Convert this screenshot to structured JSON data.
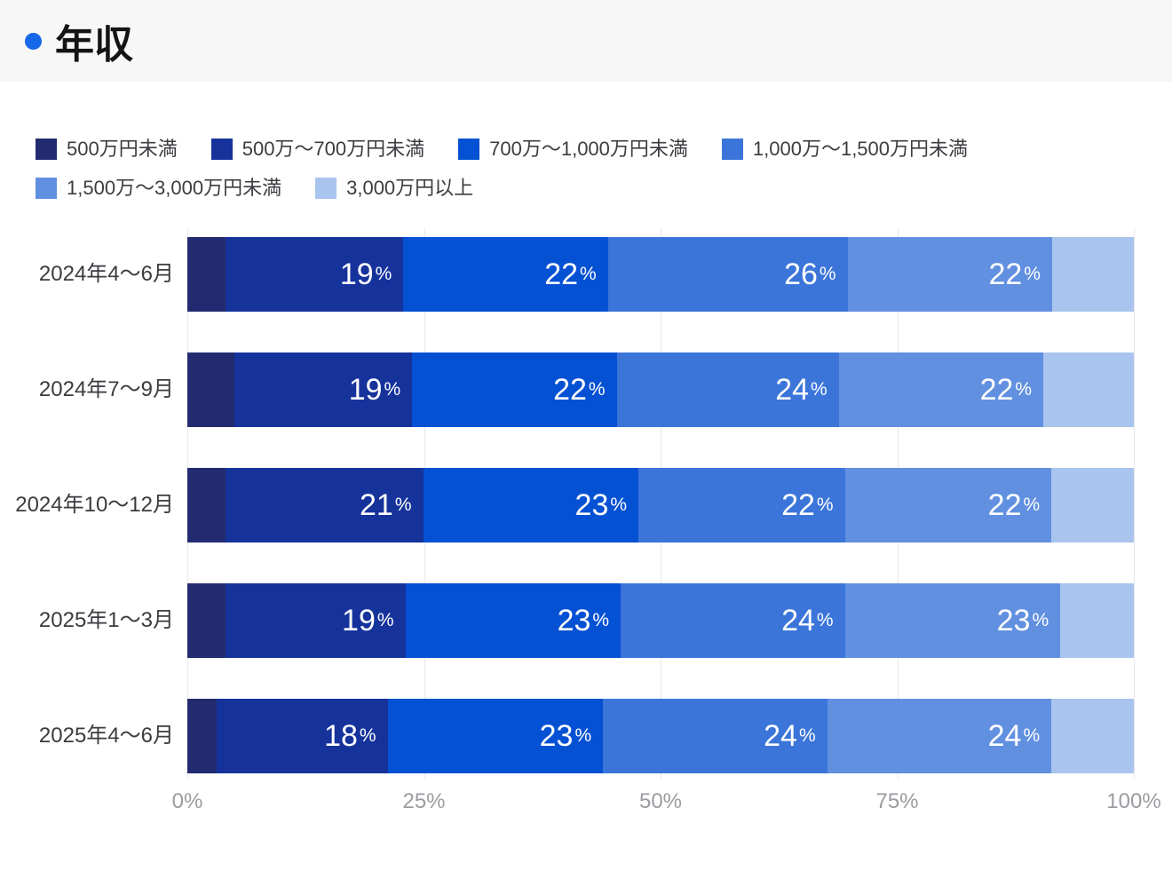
{
  "header": {
    "title": "年収",
    "accent_color": "#1668e8"
  },
  "chart_data": {
    "type": "bar",
    "orientation": "horizontal",
    "stacked": true,
    "title": "年収",
    "value_unit": "%",
    "categories": [
      "2024年4〜6月",
      "2024年7〜9月",
      "2024年10〜12月",
      "2025年1〜3月",
      "2025年4〜6月"
    ],
    "series": [
      {
        "name": "500万円未満",
        "color": "#232b70",
        "values": [
          3,
          4,
          3,
          3,
          2
        ]
      },
      {
        "name": "500万〜700万円未満",
        "color": "#16339c",
        "values": [
          19,
          19,
          21,
          19,
          18
        ]
      },
      {
        "name": "700万〜1,000万円未満",
        "color": "#0551d3",
        "values": [
          22,
          22,
          23,
          23,
          23
        ]
      },
      {
        "name": "1,000万〜1,500万円未満",
        "color": "#3b75d9",
        "values": [
          26,
          24,
          22,
          24,
          24
        ]
      },
      {
        "name": "1,500万〜3,000万円未満",
        "color": "#6190e0",
        "values": [
          22,
          22,
          22,
          23,
          24
        ]
      },
      {
        "name": "3,000万円以上",
        "color": "#a9c4ee",
        "values": [
          8,
          9,
          8,
          7,
          8
        ]
      }
    ],
    "x_ticks": [
      "0%",
      "25%",
      "50%",
      "75%",
      "100%"
    ],
    "xlim": [
      0,
      100
    ],
    "grid": true,
    "legend_position": "top",
    "data_label_suffix": "%",
    "data_label_min_value": 10
  }
}
